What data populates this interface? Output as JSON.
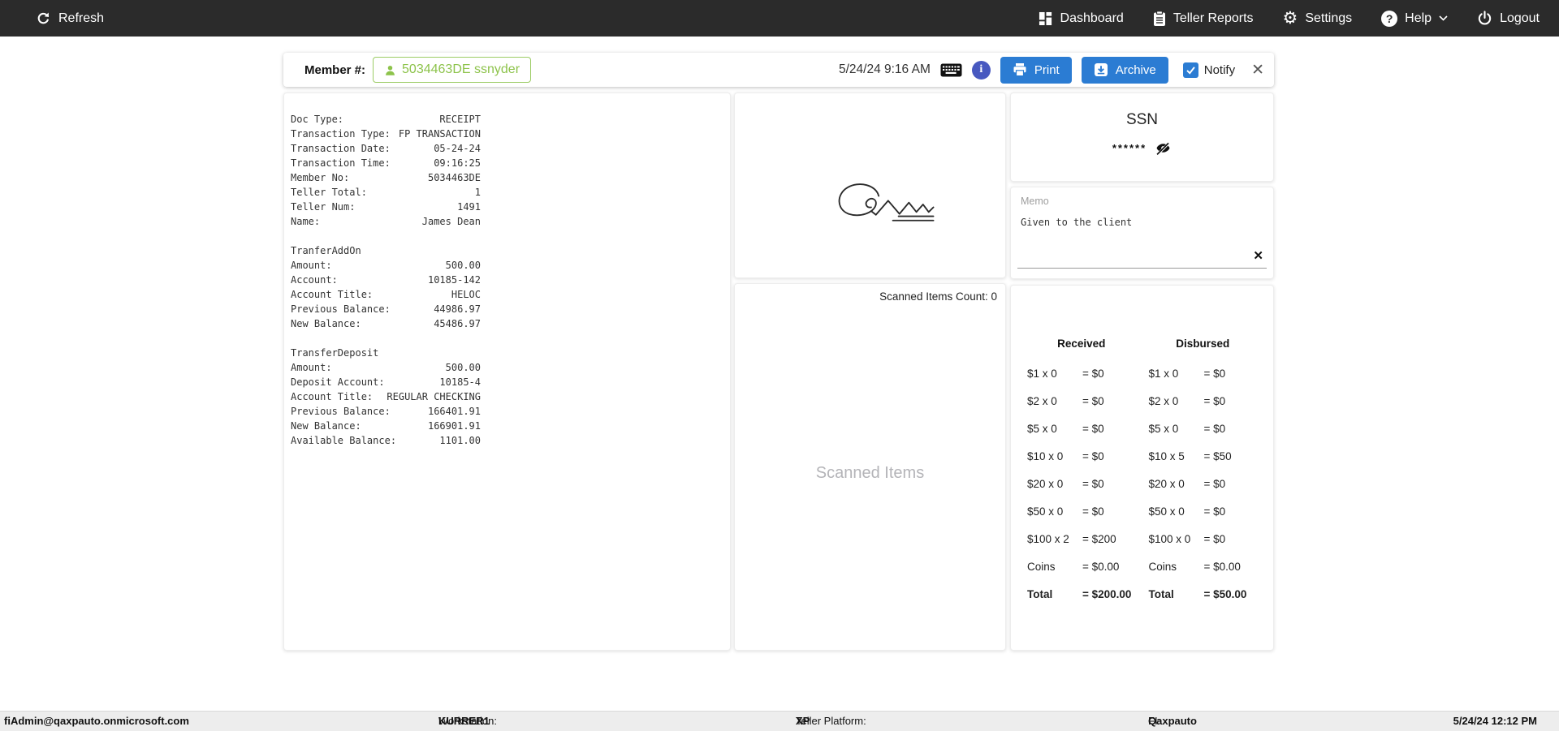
{
  "colors": {
    "nav_bg": "#2b2b2b",
    "accent_green": "#8dc34b",
    "accent_blue": "#2b7cd3",
    "info_blue": "#4859c0",
    "placeholder_gray": "#b4b4b8"
  },
  "nav": {
    "refresh_label": "Refresh",
    "items": [
      {
        "label": "Dashboard"
      },
      {
        "label": "Teller Reports"
      },
      {
        "label": "Settings"
      },
      {
        "label": "Help"
      },
      {
        "label": "Logout"
      }
    ],
    "gear_glyph": "⚙",
    "help_glyph": "?"
  },
  "header": {
    "member_label": "Member #:",
    "member_chip": "5034463DE ssnyder",
    "datetime": "5/24/24 9:16 AM",
    "print_label": "Print",
    "archive_label": "Archive",
    "notify_label": "Notify",
    "close_glyph": "✕"
  },
  "receipt": {
    "sections": [
      {
        "title": "",
        "rows": [
          [
            "Doc Type:",
            "RECEIPT"
          ],
          [
            "Transaction Type:",
            "FP TRANSACTION"
          ],
          [
            "Transaction Date:",
            "05-24-24"
          ],
          [
            "Transaction Time:",
            "09:16:25"
          ],
          [
            "Member No:",
            "5034463DE"
          ],
          [
            "Teller Total:",
            "1"
          ],
          [
            "Teller Num:",
            "1491"
          ],
          [
            "Name:",
            "James Dean"
          ]
        ]
      },
      {
        "title": "TranferAddOn",
        "rows": [
          [
            "Amount:",
            "500.00"
          ],
          [
            "Account:",
            "10185-142"
          ],
          [
            "Account Title:",
            "HELOC"
          ],
          [
            "Previous Balance:",
            "44986.97"
          ],
          [
            "New Balance:",
            "45486.97"
          ]
        ]
      },
      {
        "title": "TransferDeposit",
        "rows": [
          [
            "Amount:",
            "500.00"
          ],
          [
            "Deposit Account:",
            "10185-4"
          ],
          [
            "Account Title:",
            "REGULAR CHECKING"
          ],
          [
            "Previous Balance:",
            "166401.91"
          ],
          [
            "New Balance:",
            "166901.91"
          ],
          [
            "Available Balance:",
            "1101.00"
          ]
        ]
      }
    ]
  },
  "scanned_panel": {
    "count_label": "Scanned Items Count: 0",
    "placeholder": "Scanned Items"
  },
  "ssn_panel": {
    "title": "SSN",
    "masked": "******"
  },
  "memo_panel": {
    "label": "Memo",
    "text": "Given to the client",
    "clear_glyph": "✕"
  },
  "cash": {
    "received": {
      "header": "Received",
      "rows": [
        [
          "$1 x 0",
          "= $0"
        ],
        [
          "$2 x 0",
          "= $0"
        ],
        [
          "$5 x 0",
          "= $0"
        ],
        [
          "$10 x 0",
          "= $0"
        ],
        [
          "$20 x 0",
          "= $0"
        ],
        [
          "$50 x 0",
          "= $0"
        ],
        [
          "$100 x 2",
          "= $200"
        ],
        [
          "Coins",
          "= $0.00"
        ],
        [
          "Total",
          "= $200.00"
        ]
      ]
    },
    "disbursed": {
      "header": "Disbursed",
      "rows": [
        [
          "$1 x 0",
          "= $0"
        ],
        [
          "$2 x 0",
          "= $0"
        ],
        [
          "$5 x 0",
          "= $0"
        ],
        [
          "$10 x 5",
          "= $50"
        ],
        [
          "$20 x 0",
          "= $0"
        ],
        [
          "$50 x 0",
          "= $0"
        ],
        [
          "$100 x 0",
          "= $0"
        ],
        [
          "Coins",
          "= $0.00"
        ],
        [
          "Total",
          "= $50.00"
        ]
      ]
    }
  },
  "statusbar": {
    "user": "fiAdmin@qaxpauto.onmicrosoft.com",
    "workstation_label": "Workstation: ",
    "workstation_value": "KURRER1",
    "platform_label": "Teller Platform: ",
    "platform_value": "XP",
    "fi_label": "FI: ",
    "fi_value": "Qaxpauto",
    "datetime": "5/24/24 12:12 PM"
  }
}
